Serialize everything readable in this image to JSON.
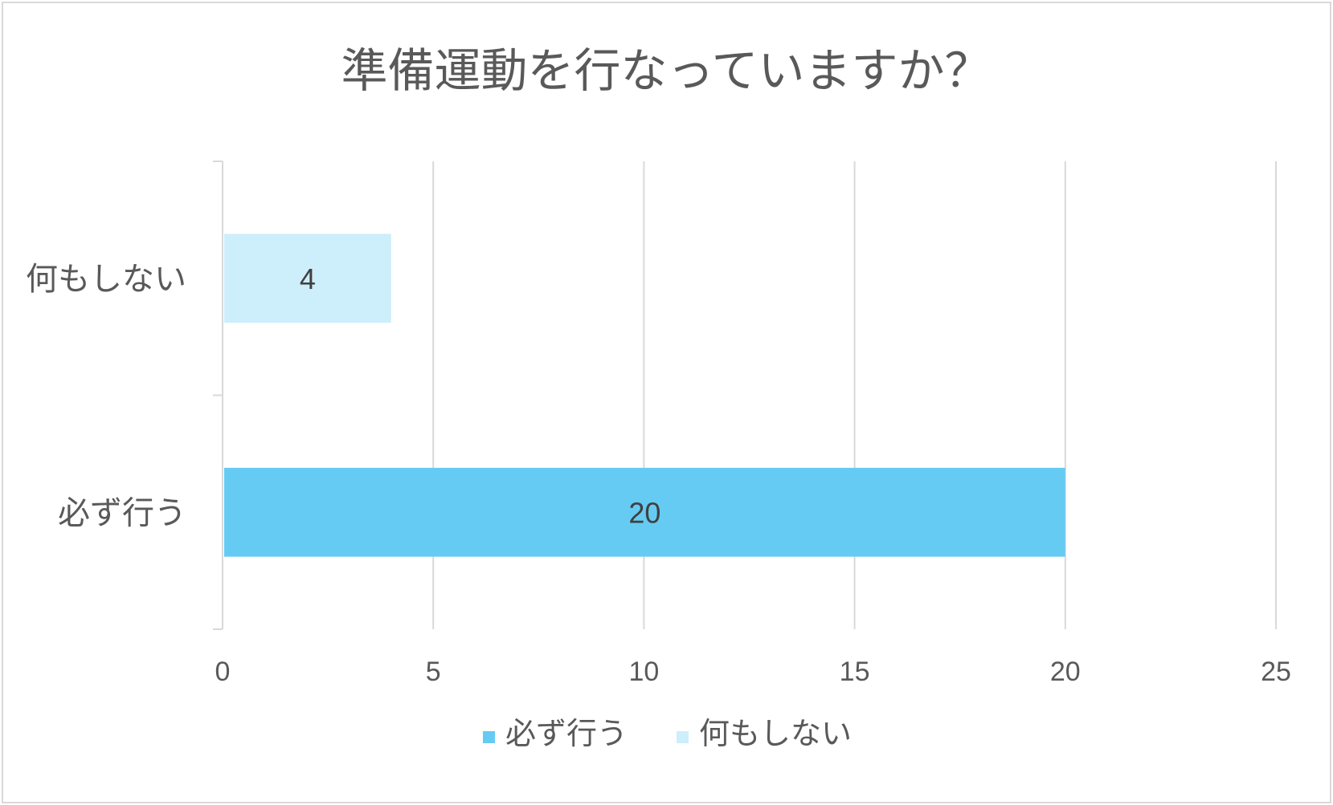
{
  "chart_data": {
    "type": "bar",
    "orientation": "horizontal",
    "title": "準備運動を行なっていますか？",
    "categories": [
      "必ず行う",
      "何もしない"
    ],
    "values": [
      20,
      4
    ],
    "colors": [
      "#65cbf3",
      "#cdeefb"
    ],
    "data_labels": [
      "20",
      "4"
    ],
    "xlim": [
      0,
      25
    ],
    "x_ticks": [
      0,
      5,
      10,
      15,
      20,
      25
    ],
    "x_tick_labels": [
      "0",
      "5",
      "10",
      "15",
      "20",
      "25"
    ],
    "grid": true,
    "legend": {
      "position": "bottom",
      "entries": [
        {
          "label": "必ず行う",
          "color": "#65cbf3"
        },
        {
          "label": "何もしない",
          "color": "#cdeefb"
        }
      ]
    }
  },
  "style": {
    "grid_color": "#d9d9d9",
    "axis_color": "#d9d9d9",
    "text_color": "#595959",
    "label_color": "#404040"
  }
}
